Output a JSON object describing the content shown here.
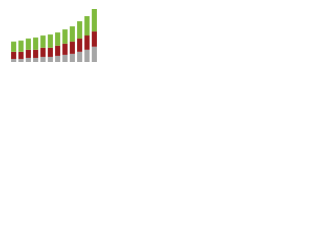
{
  "chart_data": {
    "type": "stacked-bar",
    "categories": [
      null,
      null,
      null,
      null,
      null,
      null,
      null,
      null,
      null,
      null,
      null,
      null
    ],
    "series": [
      {
        "color": "#a6a6a6",
        "values": [
          3,
          3,
          4,
          4,
          5,
          5,
          6,
          7,
          8,
          10,
          12,
          15
        ]
      },
      {
        "color": "#9b1c1f",
        "values": [
          7,
          7,
          8,
          8,
          9,
          9,
          10,
          11,
          12,
          13,
          14,
          15
        ]
      },
      {
        "color": "#7fba3d",
        "values": [
          10,
          11,
          11,
          12,
          12,
          13,
          13,
          14,
          15,
          17,
          19,
          22
        ]
      }
    ]
  }
}
